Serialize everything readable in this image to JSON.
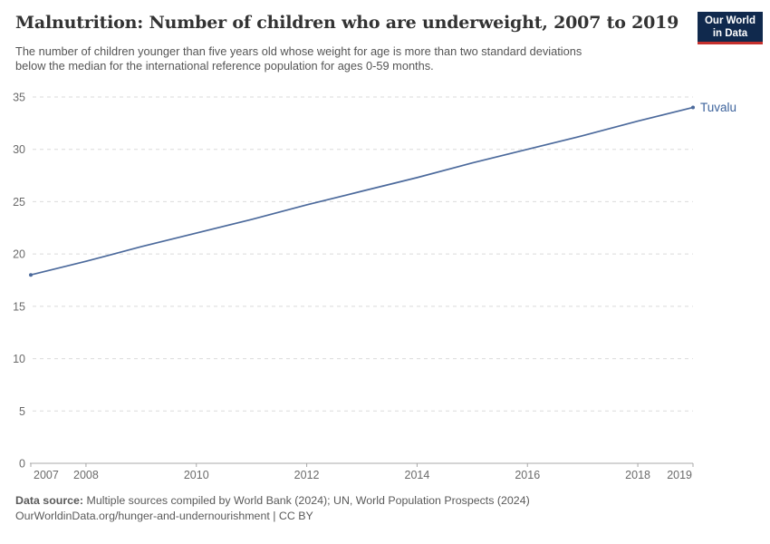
{
  "header": {
    "title": "Malnutrition: Number of children who are underweight, 2007 to 2019",
    "subtitle_lines": [
      "The number of children younger than five years old whose weight for age is more than two standard deviations",
      "below the median for the international reference population for ages 0-59 months."
    ],
    "logo": {
      "line1": "Our World",
      "line2": "in Data",
      "bg_color": "#10294D",
      "stripe_color": "#C5302D"
    }
  },
  "chart_data": {
    "type": "line",
    "title": "Malnutrition: Number of children who are underweight, 2007 to 2019",
    "xlabel": "",
    "ylabel": "",
    "xlim": [
      2007,
      2019
    ],
    "ylim": [
      0,
      35
    ],
    "x_ticks": [
      2007,
      2008,
      2010,
      2012,
      2014,
      2016,
      2018,
      2019
    ],
    "y_ticks": [
      0,
      5,
      10,
      15,
      20,
      25,
      30,
      35
    ],
    "grid": "dashed-horizontal",
    "legend_position": "end-of-line-label",
    "colors": {
      "grid": "#DBDBDB",
      "axis": "#A8A8A8",
      "tick_text": "#6B6B6B"
    },
    "series": [
      {
        "name": "Tuvalu",
        "color": "#4C6A9C",
        "label_color": "#3D639C",
        "x": [
          2007,
          2008,
          2009,
          2010,
          2011,
          2012,
          2013,
          2014,
          2015,
          2016,
          2017,
          2018,
          2019
        ],
        "values": [
          18,
          19.3,
          20.7,
          22,
          23.3,
          24.7,
          26,
          27.3,
          28.7,
          30,
          31.3,
          32.7,
          34
        ]
      }
    ]
  },
  "footer": {
    "source_label": "Data source:",
    "source_text": "Multiple sources compiled by World Bank (2024); UN, World Population Prospects (2024)",
    "link_line": "OurWorldinData.org/hunger-and-undernourishment | CC BY"
  }
}
